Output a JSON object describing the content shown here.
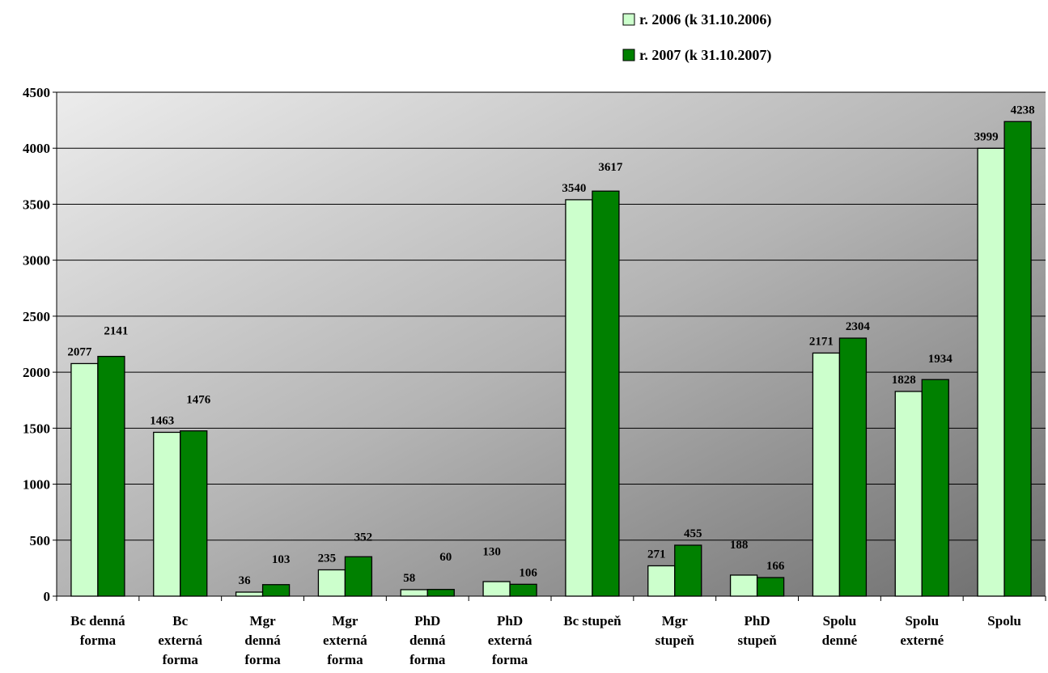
{
  "chart_data": {
    "type": "bar",
    "categories": [
      [
        "Bc denná",
        "forma"
      ],
      [
        "Bc",
        "externá",
        "forma"
      ],
      [
        "Mgr",
        "denná",
        "forma"
      ],
      [
        "Mgr",
        "externá",
        "forma"
      ],
      [
        "PhD",
        "denná",
        "forma"
      ],
      [
        "PhD",
        "externá",
        "forma"
      ],
      [
        "Bc stupeň"
      ],
      [
        "Mgr",
        "stupeň"
      ],
      [
        "PhD",
        "stupeň"
      ],
      [
        "Spolu",
        "denné"
      ],
      [
        "Spolu",
        "externé"
      ],
      [
        "Spolu"
      ]
    ],
    "series": [
      {
        "name": "r. 2006 (k 31.10.2006)",
        "color": "#ccffcc",
        "values": [
          2077,
          1463,
          36,
          235,
          58,
          130,
          3540,
          271,
          188,
          2171,
          1828,
          3999
        ]
      },
      {
        "name": "r. 2007 (k 31.10.2007)",
        "color": "#008000",
        "values": [
          2141,
          1476,
          103,
          352,
          60,
          106,
          3617,
          455,
          166,
          2304,
          1934,
          4238
        ]
      }
    ],
    "yticks": [
      "0",
      "500",
      "1000",
      "1500",
      "2000",
      "2500",
      "3000",
      "3500",
      "4000",
      "4500"
    ],
    "ylim": [
      0,
      4500
    ],
    "grid": true,
    "legend_position": "top-right"
  }
}
